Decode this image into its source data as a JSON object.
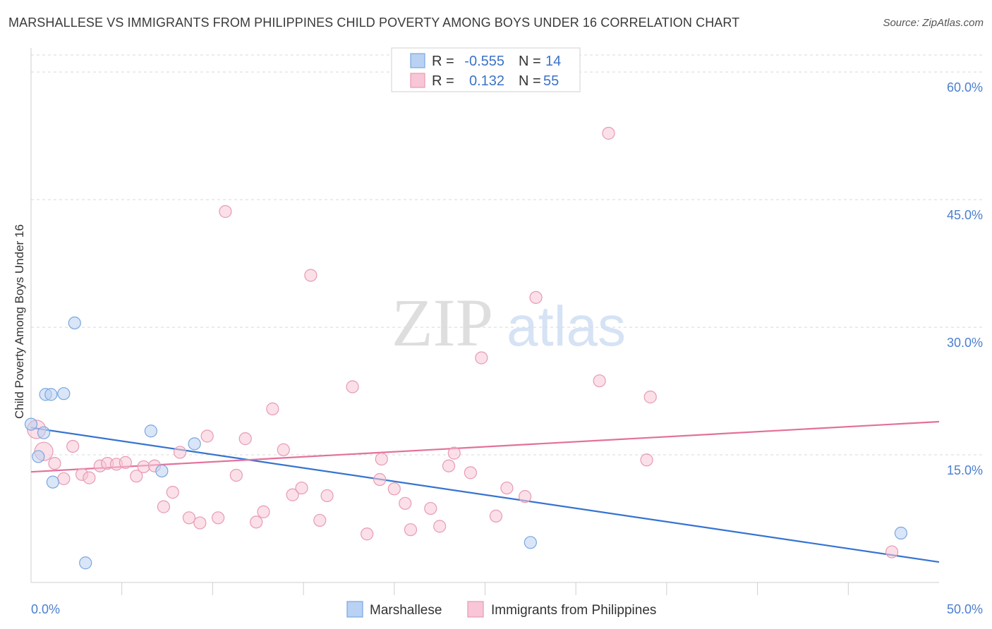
{
  "title": "MARSHALLESE VS IMMIGRANTS FROM PHILIPPINES CHILD POVERTY AMONG BOYS UNDER 16 CORRELATION CHART",
  "source": "Source: ZipAtlas.com",
  "watermark": {
    "zip": "ZIP",
    "atlas": "atlas"
  },
  "colors": {
    "blue_fill": "#b9d1f3",
    "blue_stroke": "#7aa6e0",
    "blue_line": "#3573d1",
    "pink_fill": "#f8c6d6",
    "pink_stroke": "#e79ab4",
    "pink_line": "#e3709a",
    "grid": "#d9d9d9",
    "axis_text": "#4a7fd0"
  },
  "legend": {
    "rows": [
      {
        "r_label": "R =",
        "r_value": "-0.555",
        "n_label": "N =",
        "n_value": "14",
        "series": "Marshallese"
      },
      {
        "r_label": "R =",
        "r_value": "0.132",
        "n_label": "N =",
        "n_value": "55",
        "series": "Immigrants from Philippines"
      }
    ]
  },
  "chart_data": {
    "type": "scatter",
    "title": "MARSHALLESE VS IMMIGRANTS FROM PHILIPPINES CHILD POVERTY AMONG BOYS UNDER 16 CORRELATION CHART",
    "xlabel": "",
    "ylabel": "Child Poverty Among Boys Under 16",
    "xlim": [
      0,
      50
    ],
    "ylim": [
      0,
      62
    ],
    "x_tick_labels": [
      {
        "value": 0,
        "label": "0.0%"
      },
      {
        "value": 50,
        "label": "50.0%"
      }
    ],
    "y_tick_labels": [
      {
        "value": 15,
        "label": "15.0%"
      },
      {
        "value": 30,
        "label": "30.0%"
      },
      {
        "value": 45,
        "label": "45.0%"
      },
      {
        "value": 60,
        "label": "60.0%"
      }
    ],
    "x_minor_ticks": [
      5,
      10,
      15,
      20,
      25,
      30,
      35,
      40,
      45
    ],
    "grid": true,
    "legend_position": "top-center",
    "series": [
      {
        "name": "Marshallese",
        "color": "blue",
        "points": [
          {
            "x": 0.0,
            "y": 18.6
          },
          {
            "x": 0.4,
            "y": 14.8
          },
          {
            "x": 0.7,
            "y": 17.6
          },
          {
            "x": 0.8,
            "y": 22.1
          },
          {
            "x": 1.1,
            "y": 22.1
          },
          {
            "x": 1.2,
            "y": 11.8
          },
          {
            "x": 1.8,
            "y": 22.2
          },
          {
            "x": 2.4,
            "y": 30.5
          },
          {
            "x": 3.0,
            "y": 2.3
          },
          {
            "x": 6.6,
            "y": 17.8
          },
          {
            "x": 7.2,
            "y": 13.1
          },
          {
            "x": 9.0,
            "y": 16.3
          },
          {
            "x": 27.5,
            "y": 4.7
          },
          {
            "x": 47.9,
            "y": 5.8
          }
        ],
        "trend": {
          "x1": 0,
          "y1": 18.2,
          "x2": 50,
          "y2": 2.4
        }
      },
      {
        "name": "Immigrants from Philippines",
        "color": "pink",
        "points": [
          {
            "x": 0.3,
            "y": 18.0,
            "big": true
          },
          {
            "x": 0.7,
            "y": 15.4,
            "big": true
          },
          {
            "x": 1.3,
            "y": 14.0
          },
          {
            "x": 1.8,
            "y": 12.2
          },
          {
            "x": 2.3,
            "y": 16.0
          },
          {
            "x": 2.8,
            "y": 12.7
          },
          {
            "x": 3.2,
            "y": 12.3
          },
          {
            "x": 3.8,
            "y": 13.7
          },
          {
            "x": 4.2,
            "y": 14.0
          },
          {
            "x": 4.7,
            "y": 13.9
          },
          {
            "x": 5.2,
            "y": 14.1
          },
          {
            "x": 5.8,
            "y": 12.5
          },
          {
            "x": 6.2,
            "y": 13.6
          },
          {
            "x": 6.8,
            "y": 13.7
          },
          {
            "x": 7.3,
            "y": 8.9
          },
          {
            "x": 7.8,
            "y": 10.6
          },
          {
            "x": 8.2,
            "y": 15.3
          },
          {
            "x": 8.7,
            "y": 7.6
          },
          {
            "x": 9.3,
            "y": 7.0
          },
          {
            "x": 9.7,
            "y": 17.2
          },
          {
            "x": 10.3,
            "y": 7.6
          },
          {
            "x": 10.7,
            "y": 43.6
          },
          {
            "x": 11.3,
            "y": 12.6
          },
          {
            "x": 11.8,
            "y": 16.9
          },
          {
            "x": 12.4,
            "y": 7.1
          },
          {
            "x": 12.8,
            "y": 8.3
          },
          {
            "x": 13.3,
            "y": 20.4
          },
          {
            "x": 13.9,
            "y": 15.6
          },
          {
            "x": 14.4,
            "y": 10.3
          },
          {
            "x": 14.9,
            "y": 11.1
          },
          {
            "x": 15.4,
            "y": 36.1
          },
          {
            "x": 15.9,
            "y": 7.3
          },
          {
            "x": 16.3,
            "y": 10.2
          },
          {
            "x": 17.7,
            "y": 23.0
          },
          {
            "x": 18.5,
            "y": 5.7
          },
          {
            "x": 19.2,
            "y": 12.1
          },
          {
            "x": 19.3,
            "y": 14.5
          },
          {
            "x": 20.0,
            "y": 11.0
          },
          {
            "x": 20.6,
            "y": 9.3
          },
          {
            "x": 20.9,
            "y": 6.2
          },
          {
            "x": 22.0,
            "y": 8.7
          },
          {
            "x": 22.5,
            "y": 6.6
          },
          {
            "x": 23.0,
            "y": 13.7
          },
          {
            "x": 23.3,
            "y": 15.2
          },
          {
            "x": 24.2,
            "y": 12.9
          },
          {
            "x": 24.8,
            "y": 26.4
          },
          {
            "x": 25.6,
            "y": 7.8
          },
          {
            "x": 26.2,
            "y": 11.1
          },
          {
            "x": 27.2,
            "y": 10.1
          },
          {
            "x": 27.8,
            "y": 33.5
          },
          {
            "x": 31.3,
            "y": 23.7
          },
          {
            "x": 31.8,
            "y": 52.8
          },
          {
            "x": 33.9,
            "y": 14.4
          },
          {
            "x": 34.1,
            "y": 21.8
          },
          {
            "x": 47.4,
            "y": 3.6
          }
        ],
        "trend": {
          "x1": 0,
          "y1": 13.0,
          "x2": 50,
          "y2": 18.9
        }
      }
    ]
  },
  "bottom_legend": [
    {
      "label": "Marshallese",
      "color": "blue"
    },
    {
      "label": "Immigrants from Philippines",
      "color": "pink"
    }
  ]
}
